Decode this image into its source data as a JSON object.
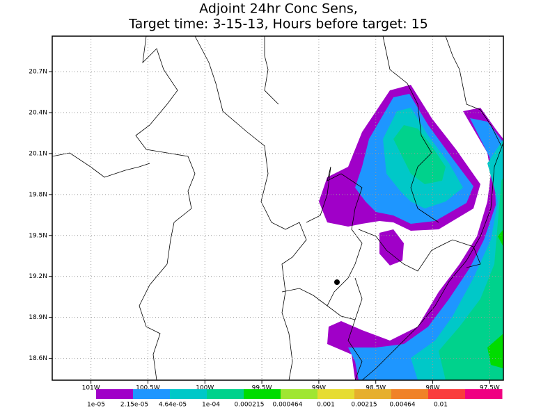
{
  "chart_data": {
    "type": "map",
    "title": "Adjoint 24hr Conc Sens,",
    "subtitle": "Target time: 3-15-13, Hours before target: 15",
    "xlim": [
      -101.34,
      -97.38
    ],
    "ylim": [
      18.44,
      20.96
    ],
    "xticks": [
      {
        "value": -101,
        "label": "101W"
      },
      {
        "value": -100.5,
        "label": "100.5W"
      },
      {
        "value": -100,
        "label": "100W"
      },
      {
        "value": -99.5,
        "label": "99.5W"
      },
      {
        "value": -99,
        "label": "99W"
      },
      {
        "value": -98.5,
        "label": "98.5W"
      },
      {
        "value": -98,
        "label": "98W"
      },
      {
        "value": -97.5,
        "label": "97.5W"
      }
    ],
    "yticks": [
      {
        "value": 18.6,
        "label": "18.6N"
      },
      {
        "value": 18.9,
        "label": "18.9N"
      },
      {
        "value": 19.2,
        "label": "19.2N"
      },
      {
        "value": 19.5,
        "label": "19.5N"
      },
      {
        "value": 19.8,
        "label": "19.8N"
      },
      {
        "value": 20.1,
        "label": "20.1N"
      },
      {
        "value": 20.4,
        "label": "20.4N"
      },
      {
        "value": 20.7,
        "label": "20.7N"
      }
    ],
    "grid": true,
    "colorbar": {
      "colors": [
        "#a000c8",
        "#1e96ff",
        "#00c8c8",
        "#00d28c",
        "#00dc00",
        "#a0e632",
        "#e6dc32",
        "#e6af2d",
        "#f08228",
        "#fa3c3c",
        "#f00082"
      ],
      "levels": [
        {
          "value": 1e-05,
          "label": "1e-05"
        },
        {
          "value": 2.15e-05,
          "label": "2.15e-05"
        },
        {
          "value": 4.64e-05,
          "label": "4.64e-05"
        },
        {
          "value": 0.0001,
          "label": "1e-04"
        },
        {
          "value": 0.000215,
          "label": "0.000215"
        },
        {
          "value": 0.000464,
          "label": "0.000464"
        },
        {
          "value": 0.001,
          "label": "0.001"
        },
        {
          "value": 0.00215,
          "label": "0.00215"
        },
        {
          "value": 0.00464,
          "label": "0.00464"
        },
        {
          "value": 0.01,
          "label": "0.01"
        }
      ]
    }
  }
}
